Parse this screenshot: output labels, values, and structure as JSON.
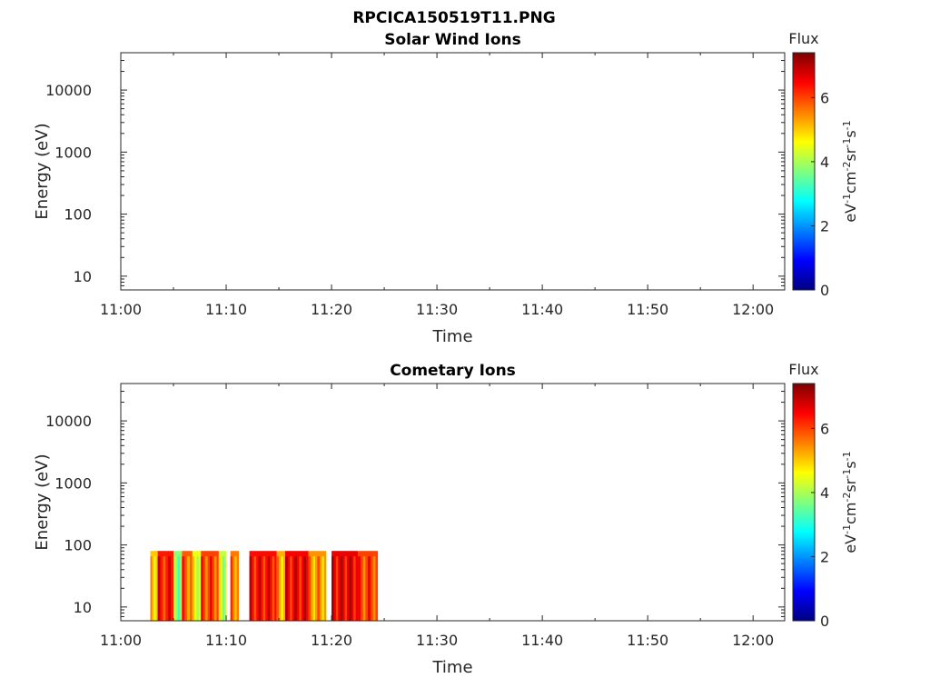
{
  "figure": {
    "title": "RPCICA150519T11.PNG"
  },
  "colors": {
    "frame": "#262626",
    "background": "#ffffff",
    "colormap": "jet"
  },
  "chart_data": [
    {
      "type": "heatmap",
      "title": "Solar Wind Ions",
      "xlabel": "Time",
      "ylabel": "Energy (eV)",
      "x_ticks": [
        "11:00",
        "11:10",
        "11:20",
        "11:30",
        "11:40",
        "11:50",
        "12:00"
      ],
      "xlim": [
        "11:00",
        "12:03"
      ],
      "y_scale": "log",
      "y_ticks": [
        "10",
        "100",
        "1000",
        "10000"
      ],
      "ylim": [
        6,
        40000
      ],
      "colorbar": {
        "label": "Flux",
        "unit_label": "eV-1cm-2sr-1s-1",
        "ticks": [
          "0",
          "2",
          "4",
          "6"
        ],
        "range": [
          0,
          7.4
        ]
      },
      "data": []
    },
    {
      "type": "heatmap",
      "title": "Cometary Ions",
      "xlabel": "Time",
      "ylabel": "Energy (eV)",
      "x_ticks": [
        "11:00",
        "11:10",
        "11:20",
        "11:30",
        "11:40",
        "11:50",
        "12:00"
      ],
      "xlim": [
        "11:00",
        "12:03"
      ],
      "y_scale": "log",
      "y_ticks": [
        "10",
        "100",
        "1000",
        "10000"
      ],
      "ylim": [
        6,
        40000
      ],
      "energy_max": 80,
      "colorbar": {
        "label": "Flux",
        "unit_label": "eV-1cm-2sr-1s-1",
        "ticks": [
          "0",
          "2",
          "4",
          "6"
        ],
        "range": [
          0,
          7.4
        ]
      },
      "segments": [
        {
          "start": "11:02.8",
          "end": "11:03.5",
          "level": 5.0
        },
        {
          "start": "11:03.5",
          "end": "11:05.0",
          "level": 6.3
        },
        {
          "start": "11:05.0",
          "end": "11:05.8",
          "level": 3.8
        },
        {
          "start": "11:05.8",
          "end": "11:06.8",
          "level": 5.8
        },
        {
          "start": "11:06.8",
          "end": "11:07.6",
          "level": 4.5
        },
        {
          "start": "11:07.6",
          "end": "11:09.3",
          "level": 6.0
        },
        {
          "start": "11:09.3",
          "end": "11:10.0",
          "level": 4.2
        },
        {
          "start": "11:10.4",
          "end": "11:11.2",
          "level": 5.6
        },
        {
          "start": "11:12.2",
          "end": "11:14.8",
          "level": 6.4
        },
        {
          "start": "11:14.8",
          "end": "11:15.6",
          "level": 5.2
        },
        {
          "start": "11:15.6",
          "end": "11:17.8",
          "level": 6.5
        },
        {
          "start": "11:17.8",
          "end": "11:19.5",
          "level": 5.4
        },
        {
          "start": "11:20.0",
          "end": "11:22.5",
          "level": 6.6
        },
        {
          "start": "11:22.5",
          "end": "11:24.4",
          "level": 6.0
        }
      ]
    }
  ]
}
